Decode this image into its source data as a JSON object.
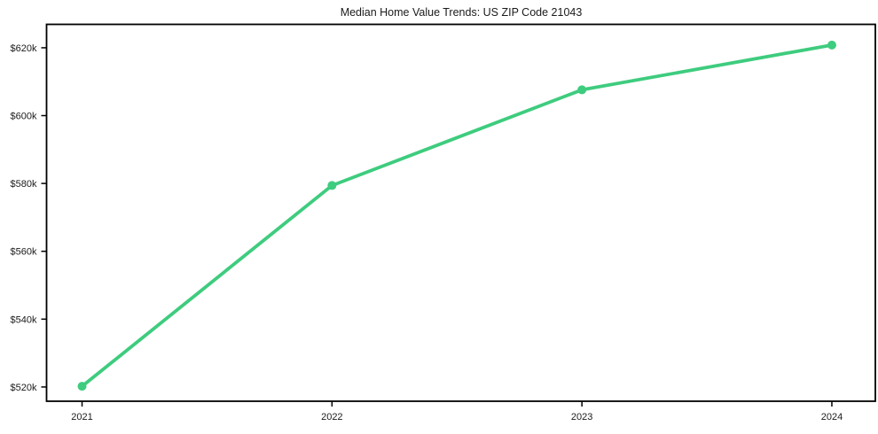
{
  "chart_data": {
    "type": "line",
    "title": "Median Home Value Trends: US ZIP Code 21043",
    "x": [
      2021,
      2022,
      2023,
      2024
    ],
    "series": [
      {
        "name": "Median Home Value",
        "values": [
          520200,
          579400,
          607600,
          620800
        ]
      }
    ],
    "xlabel": "",
    "ylabel": "",
    "xlim": [
      2020.858,
      2024.174
    ],
    "ylim": [
      515800,
      626900
    ],
    "xticks": [
      {
        "v": 2021,
        "label": "2021"
      },
      {
        "v": 2022,
        "label": "2022"
      },
      {
        "v": 2023,
        "label": "2023"
      },
      {
        "v": 2024,
        "label": "2024"
      }
    ],
    "yticks": [
      {
        "v": 520000,
        "label": "$520k"
      },
      {
        "v": 540000,
        "label": "$540k"
      },
      {
        "v": 560000,
        "label": "$560k"
      },
      {
        "v": 580000,
        "label": "$580k"
      },
      {
        "v": 600000,
        "label": "$600k"
      },
      {
        "v": 620000,
        "label": "$620k"
      }
    ],
    "grid": false,
    "legend": "none",
    "line_color": "#3ECC7E",
    "line_width": 3.8,
    "marker": "circle",
    "marker_radius": 5,
    "background": "#FFFFFF",
    "axis_color": "#000000",
    "text_color": "#1A1A1A"
  }
}
